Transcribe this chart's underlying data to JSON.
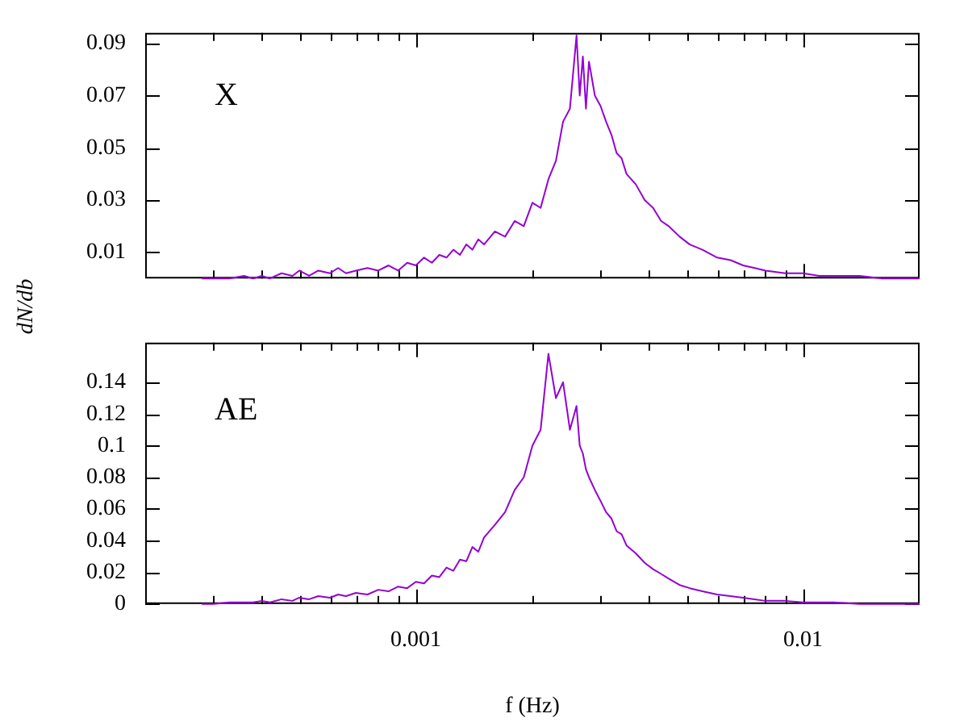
{
  "chart_data": [
    {
      "type": "line",
      "ylabel": "dN/db",
      "annotations": [
        "X"
      ],
      "tick_labels": "y",
      "x": [
        0.00028,
        0.0003,
        0.00033,
        0.00036,
        0.00038,
        0.0004,
        0.00042,
        0.00045,
        0.00048,
        0.0005,
        0.00053,
        0.00056,
        0.0006,
        0.00063,
        0.00066,
        0.0007,
        0.00075,
        0.0008,
        0.00085,
        0.0009,
        0.00095,
        0.001,
        0.00105,
        0.0011,
        0.00115,
        0.0012,
        0.00125,
        0.0013,
        0.00135,
        0.0014,
        0.00145,
        0.0015,
        0.0016,
        0.0017,
        0.0018,
        0.0019,
        0.002,
        0.0021,
        0.0022,
        0.0023,
        0.0024,
        0.0025,
        0.0026,
        0.00265,
        0.0027,
        0.00275,
        0.0028,
        0.0029,
        0.003,
        0.0031,
        0.0032,
        0.0033,
        0.0034,
        0.0035,
        0.0037,
        0.0039,
        0.0041,
        0.0043,
        0.0045,
        0.0048,
        0.0051,
        0.0055,
        0.006,
        0.0065,
        0.007,
        0.0075,
        0.008,
        0.009,
        0.01,
        0.011,
        0.012,
        0.014,
        0.016,
        0.018,
        0.02
      ],
      "series": [
        {
          "color": "#9400d3",
          "values": [
            0,
            0,
            0,
            0.001,
            0,
            0.001,
            0,
            0.002,
            0.001,
            0.003,
            0.001,
            0.003,
            0.002,
            0.004,
            0.002,
            0.003,
            0.004,
            0.003,
            0.005,
            0.003,
            0.006,
            0.005,
            0.008,
            0.006,
            0.009,
            0.008,
            0.011,
            0.009,
            0.013,
            0.011,
            0.015,
            0.013,
            0.018,
            0.016,
            0.022,
            0.02,
            0.029,
            0.027,
            0.038,
            0.045,
            0.06,
            0.065,
            0.093,
            0.07,
            0.085,
            0.065,
            0.083,
            0.07,
            0.066,
            0.06,
            0.055,
            0.048,
            0.046,
            0.04,
            0.036,
            0.03,
            0.027,
            0.022,
            0.02,
            0.016,
            0.013,
            0.011,
            0.008,
            0.007,
            0.005,
            0.004,
            0.003,
            0.002,
            0.002,
            0.001,
            0.001,
            0.001,
            0,
            0,
            0
          ]
        }
      ],
      "log": "x",
      "xlim": [
        0.0002,
        0.02
      ],
      "xticks": [
        {
          "value": 0.0003,
          "label": null
        },
        {
          "value": 0.0004,
          "label": null
        },
        {
          "value": 0.0005,
          "label": null
        },
        {
          "value": 0.0006,
          "label": null
        },
        {
          "value": 0.0007,
          "label": null
        },
        {
          "value": 0.0008,
          "label": null
        },
        {
          "value": 0.0009,
          "label": null
        },
        0.001,
        {
          "value": 0.002,
          "label": null
        },
        {
          "value": 0.003,
          "label": null
        },
        {
          "value": 0.004,
          "label": null
        },
        {
          "value": 0.005,
          "label": null
        },
        {
          "value": 0.006,
          "label": null
        },
        {
          "value": 0.007,
          "label": null
        },
        {
          "value": 0.008,
          "label": null
        },
        {
          "value": 0.009,
          "label": null
        },
        0.01
      ],
      "ylim": [
        0,
        0.094
      ],
      "yticks": [
        0.01,
        0.03,
        0.05,
        0.07,
        0.09
      ]
    },
    {
      "type": "line",
      "xlabel": "f (Hz)",
      "annotations": [
        "AE"
      ],
      "x": [
        0.00028,
        0.0003,
        0.00033,
        0.00036,
        0.00038,
        0.0004,
        0.00042,
        0.00045,
        0.00048,
        0.0005,
        0.00053,
        0.00056,
        0.0006,
        0.00063,
        0.00066,
        0.0007,
        0.00075,
        0.0008,
        0.00085,
        0.0009,
        0.00095,
        0.001,
        0.00105,
        0.0011,
        0.00115,
        0.0012,
        0.00125,
        0.0013,
        0.00135,
        0.0014,
        0.00145,
        0.0015,
        0.0016,
        0.0017,
        0.0018,
        0.0019,
        0.002,
        0.0021,
        0.0022,
        0.0023,
        0.0024,
        0.0025,
        0.0026,
        0.00265,
        0.0027,
        0.00275,
        0.0028,
        0.0029,
        0.003,
        0.0031,
        0.0032,
        0.0033,
        0.0034,
        0.0035,
        0.0037,
        0.0039,
        0.0041,
        0.0043,
        0.0045,
        0.0048,
        0.0051,
        0.0055,
        0.006,
        0.0065,
        0.007,
        0.0075,
        0.008,
        0.009,
        0.01,
        0.011,
        0.012,
        0.014,
        0.016,
        0.018,
        0.02
      ],
      "series": [
        {
          "color": "#9400d3",
          "values": [
            0,
            0,
            0.001,
            0.001,
            0.001,
            0.002,
            0.001,
            0.003,
            0.002,
            0.004,
            0.003,
            0.005,
            0.004,
            0.006,
            0.005,
            0.007,
            0.006,
            0.009,
            0.008,
            0.011,
            0.01,
            0.014,
            0.013,
            0.018,
            0.017,
            0.023,
            0.021,
            0.028,
            0.027,
            0.036,
            0.033,
            0.042,
            0.05,
            0.058,
            0.072,
            0.08,
            0.1,
            0.11,
            0.158,
            0.13,
            0.14,
            0.11,
            0.125,
            0.1,
            0.095,
            0.085,
            0.08,
            0.072,
            0.065,
            0.058,
            0.054,
            0.046,
            0.044,
            0.037,
            0.032,
            0.026,
            0.022,
            0.019,
            0.016,
            0.012,
            0.01,
            0.008,
            0.006,
            0.005,
            0.004,
            0.003,
            0.002,
            0.002,
            0.001,
            0.001,
            0.001,
            0,
            0,
            0,
            0
          ]
        }
      ],
      "log": "x",
      "xlim": [
        0.0002,
        0.02
      ],
      "xticks": [
        {
          "value": 0.0003,
          "label": null
        },
        {
          "value": 0.0004,
          "label": null
        },
        {
          "value": 0.0005,
          "label": null
        },
        {
          "value": 0.0006,
          "label": null
        },
        {
          "value": 0.0007,
          "label": null
        },
        {
          "value": 0.0008,
          "label": null
        },
        {
          "value": 0.0009,
          "label": null
        },
        0.001,
        {
          "value": 0.002,
          "label": null
        },
        {
          "value": 0.003,
          "label": null
        },
        {
          "value": 0.004,
          "label": null
        },
        {
          "value": 0.005,
          "label": null
        },
        {
          "value": 0.006,
          "label": null
        },
        {
          "value": 0.007,
          "label": null
        },
        {
          "value": 0.008,
          "label": null
        },
        {
          "value": 0.009,
          "label": null
        },
        0.01
      ],
      "ylim": [
        0,
        0.165
      ],
      "yticks": [
        0,
        0.02,
        0.04,
        0.06,
        0.08,
        0.1,
        0.12,
        0.14
      ]
    }
  ]
}
